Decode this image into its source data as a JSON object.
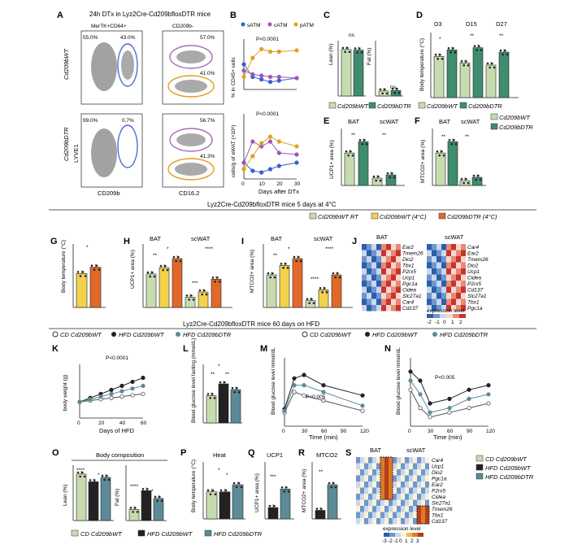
{
  "figure": {
    "panel_letters": [
      "A",
      "B",
      "C",
      "D",
      "E",
      "F",
      "G",
      "H",
      "I",
      "J",
      "K",
      "L",
      "M",
      "N",
      "O",
      "P",
      "Q",
      "R",
      "S"
    ],
    "section1_title": "24h DTx in Lyz2Cre-Cd209bfloxDTR mice",
    "section2_title": "Lyz2Cre-Cd209bfloxDTR mice 5 days at 4°C",
    "section3_title": "Lyz2Cre-Cd209bfloxDTR mice 60 days on HFD",
    "legend_top": [
      "Cd209bWT",
      "Cd209bDTR"
    ],
    "legend_cold": [
      "Cd209bWT RT",
      "Cd209bWT (4°C)",
      "Cd209bDTR (4°C)"
    ],
    "legend_hfd": [
      "CD Cd209bWT",
      "HFD Cd209bWT",
      "HFD Cd209bDTR"
    ],
    "colors": {
      "wt": "#c7dcae",
      "dtr": "#3f8c6e",
      "wt_rt": "#c7dcae",
      "wt_cold": "#f2d14d",
      "dtr_cold": "#e0692a",
      "cd": "#c7dcae",
      "hfd_wt": "#222222",
      "hfd_dtr": "#5c8a97",
      "satm": "#3a5fcd",
      "catm": "#9b5ab4",
      "patm": "#e0a020"
    }
  },
  "panelA": {
    "gate_left_title": "MerTK+CD64+",
    "gate_right_title": "CD209b-",
    "row_labels": [
      "Cd209bWT",
      "Cd209bDTR"
    ],
    "xlabels": [
      "CD209b",
      "CD16.2"
    ],
    "ylabel": "LYVE1",
    "percents_wt_left": [
      "55.0%",
      "43.0%"
    ],
    "percents_wt_right": [
      "57.0%",
      "41.0%"
    ],
    "percents_dtr_left": [
      "99.0%",
      "0.7%"
    ],
    "percents_dtr_right": [
      "56.7%",
      "41.3%"
    ]
  },
  "panelB": {
    "legend": [
      "sATM",
      "cATM",
      "pATM"
    ],
    "p1": "P<0.0001",
    "p2": "P<0.0001",
    "ylabel1": "% in CD45+ cells",
    "ylabel2": "cells/g of eWAT (×10⁶)",
    "xlabel": "Days after DTx",
    "xticks": [
      "0",
      "10",
      "20",
      "30"
    ]
  },
  "panelC": {
    "ylabels": [
      "Lean (%)",
      "Fat (%)"
    ],
    "ns": [
      "ns",
      "ns"
    ]
  },
  "panelD": {
    "titles": [
      "D3",
      "D15",
      "D27"
    ],
    "ylabel": "Body temperature (°C)",
    "sig": [
      "*",
      "**",
      "**"
    ]
  },
  "panelE": {
    "titles": [
      "BAT",
      "scWAT"
    ],
    "ylabel": "UCP1+ area (%)",
    "sig": [
      "**",
      "**"
    ]
  },
  "panelF": {
    "titles": [
      "BAT",
      "scWAT"
    ],
    "ylabel": "MTCO2+ area (%)",
    "sig": [
      "**",
      "**"
    ]
  },
  "panelG": {
    "ylabel": "Body temperature (°C)",
    "sig": "*"
  },
  "panelH": {
    "titles": [
      "BAT",
      "scWAT"
    ],
    "ylabel": "UCP1+ area (%)",
    "sig": [
      "**",
      "*",
      "***",
      "****"
    ]
  },
  "panelI": {
    "titles": [
      "BAT",
      "scWAT"
    ],
    "ylabel": "MTCO2+ area (%)",
    "sig": [
      "**",
      "*",
      "****",
      "****"
    ]
  },
  "panelJ": {
    "titles": [
      "BAT",
      "scWAT"
    ],
    "genes_bat": [
      "Ear2",
      "Tmem26",
      "Dio2",
      "Tbx1",
      "P2rx5",
      "Ucp1",
      "Pgc1a",
      "Cidea",
      "Slc27a1",
      "Car4",
      "Cd137"
    ],
    "genes_scwat": [
      "Car4",
      "Ear2",
      "Tmem26",
      "Dio2",
      "Ucp1",
      "Cidea",
      "P2rx5",
      "Cd137",
      "Slc27a1",
      "Tbx1",
      "Pgc1a"
    ],
    "scale_label": "expression level",
    "scale_ticks": [
      "-2",
      "-1",
      "0",
      "1",
      "2"
    ]
  },
  "panelK": {
    "p": "P<0.0001",
    "ylabel": "body weight (g)",
    "xlabel": "Days of HFD",
    "xticks": [
      "0",
      "20",
      "40",
      "60"
    ]
  },
  "panelL": {
    "ylabel": "Blood glucose level fasting (mmol/L)",
    "sig": [
      "*",
      "**",
      "**"
    ]
  },
  "panelM": {
    "p": "P<0.005",
    "ylabel": "Blood glucose level mmol/dL",
    "xlabel": "Time (min)",
    "xticks": [
      "0",
      "30",
      "60",
      "90",
      "120"
    ]
  },
  "panelN": {
    "p": "P<0.005",
    "ylabel": "Blood glucose level mmol/dL",
    "xlabel": "Time (min)",
    "xticks": [
      "0",
      "30",
      "60",
      "90",
      "120"
    ]
  },
  "panelO": {
    "title": "Body composition",
    "ylabels": [
      "Lean (%)",
      "Fat (%)"
    ],
    "sig": [
      "****",
      "*",
      "****",
      "*"
    ]
  },
  "panelP": {
    "title": "Heat",
    "ylabel": "Body temperature (°C)",
    "sig": [
      "*",
      "*"
    ]
  },
  "panelQ": {
    "title": "UCP1",
    "ylabel": "UCP1+ area (%)",
    "sig": "***"
  },
  "panelR": {
    "title": "MTCO2",
    "ylabel": "MTCO2+ area (%)",
    "sig": "**"
  },
  "panelS": {
    "titles": [
      "BAT",
      "scWAT"
    ],
    "genes": [
      "Car4",
      "Ucp1",
      "Dio2",
      "Pgc1a",
      "Ear2",
      "P2rx5",
      "Cidea",
      "Slc27a1",
      "Tmem26",
      "Tbx1",
      "Cd137"
    ],
    "scale_label": "expression level",
    "scale_ticks": [
      "-3",
      "-2",
      "-1",
      "0",
      "1",
      "2",
      "3"
    ]
  },
  "chart_data": [
    {
      "type": "bar",
      "panel": "C-lean",
      "categories": [
        "Cd209bWT",
        "Cd209bDTR"
      ],
      "values": [
        84,
        83
      ],
      "ylim": [
        0,
        100
      ]
    },
    {
      "type": "bar",
      "panel": "C-fat",
      "categories": [
        "Cd209bWT",
        "Cd209bDTR"
      ],
      "values": [
        9,
        10
      ],
      "ylim": [
        0,
        100
      ]
    },
    {
      "type": "bar",
      "panel": "D",
      "categories": [
        "D3-WT",
        "D3-DTR",
        "D15-WT",
        "D15-DTR",
        "D27-WT",
        "D27-DTR"
      ],
      "values": [
        36.9,
        37.2,
        36.6,
        37.3,
        36.5,
        37.1
      ],
      "ylim": [
        35,
        38
      ]
    },
    {
      "type": "bar",
      "panel": "E",
      "categories": [
        "BAT-WT",
        "BAT-DTR",
        "scWAT-WT",
        "scWAT-DTR"
      ],
      "values": [
        20,
        27,
        4.5,
        6.5
      ]
    },
    {
      "type": "bar",
      "panel": "F",
      "categories": [
        "BAT-WT",
        "BAT-DTR",
        "scWAT-WT",
        "scWAT-DTR"
      ],
      "values": [
        20,
        27,
        3,
        5
      ]
    },
    {
      "type": "bar",
      "panel": "G",
      "categories": [
        "Cd209bWT (4°C)",
        "Cd209bDTR (4°C)"
      ],
      "values": [
        36.6,
        36.9
      ],
      "ylim": [
        35,
        38
      ]
    },
    {
      "type": "bar",
      "panel": "H",
      "categories": [
        "BAT-RT",
        "BAT-WT4",
        "BAT-DTR4",
        "scWAT-RT",
        "scWAT-WT4",
        "scWAT-DTR4"
      ],
      "values": [
        26,
        31,
        38,
        8,
        12,
        22
      ]
    },
    {
      "type": "bar",
      "panel": "I",
      "categories": [
        "BAT-RT",
        "BAT-WT4",
        "BAT-DTR4",
        "scWAT-RT",
        "scWAT-WT4",
        "scWAT-DTR4"
      ],
      "values": [
        24,
        31,
        36,
        5,
        13,
        24
      ]
    },
    {
      "type": "line",
      "panel": "B-top",
      "x": [
        0,
        5,
        10,
        15,
        20,
        30
      ],
      "series": [
        {
          "name": "sATM",
          "values": [
            20,
            10,
            8,
            6,
            7,
            9
          ]
        },
        {
          "name": "cATM",
          "values": [
            15,
            12,
            11,
            10,
            10,
            9
          ]
        },
        {
          "name": "pATM",
          "values": [
            10,
            25,
            32,
            30,
            30,
            31
          ]
        }
      ],
      "ylim": [
        0,
        40
      ]
    },
    {
      "type": "line",
      "panel": "B-bottom",
      "x": [
        0,
        5,
        10,
        15,
        20,
        30
      ],
      "series": [
        {
          "name": "sATM",
          "values": [
            1.0,
            0.5,
            0.4,
            0.6,
            0.8,
            1.0
          ]
        },
        {
          "name": "cATM",
          "values": [
            1.0,
            2.3,
            2.0,
            2.3,
            1.6,
            1.5
          ]
        },
        {
          "name": "pATM",
          "values": [
            0.6,
            1.4,
            2.2,
            2.6,
            2.3,
            2.0
          ]
        }
      ],
      "ylim": [
        0,
        4
      ]
    },
    {
      "type": "line",
      "panel": "K",
      "x": [
        0,
        10,
        20,
        30,
        40,
        50,
        60
      ],
      "series": [
        {
          "name": "CD Cd209bWT",
          "values": [
            22,
            23,
            24,
            25,
            26,
            27,
            28
          ]
        },
        {
          "name": "HFD Cd209bWT",
          "values": [
            22,
            25,
            28,
            31,
            34,
            37,
            40
          ]
        },
        {
          "name": "HFD Cd209bDTR",
          "values": [
            22,
            24,
            26,
            28,
            30,
            32,
            34
          ]
        }
      ],
      "ylim": [
        10,
        50
      ]
    },
    {
      "type": "bar",
      "panel": "L",
      "categories": [
        "CD Cd209bWT",
        "HFD Cd209bWT",
        "HFD Cd209bDTR"
      ],
      "values": [
        7,
        10,
        8.5
      ],
      "ylim": [
        0,
        15
      ]
    },
    {
      "type": "line",
      "panel": "M",
      "x": [
        0,
        15,
        30,
        60,
        120
      ],
      "series": [
        {
          "name": "CD Cd209bWT",
          "values": [
            8,
            20,
            18,
            15,
            9
          ]
        },
        {
          "name": "HFD Cd209bWT",
          "values": [
            10,
            28,
            30,
            24,
            18
          ]
        },
        {
          "name": "HFD Cd209bDTR",
          "values": [
            9,
            24,
            24,
            20,
            12
          ]
        }
      ],
      "ylim": [
        0,
        40
      ]
    },
    {
      "type": "line",
      "panel": "N",
      "x": [
        0,
        15,
        30,
        60,
        90,
        120
      ],
      "series": [
        {
          "name": "CD Cd209bWT",
          "values": [
            8,
            4,
            2,
            3,
            4,
            5
          ]
        },
        {
          "name": "HFD Cd209bWT",
          "values": [
            12,
            10,
            5,
            6,
            8,
            9
          ]
        },
        {
          "name": "HFD Cd209bDTR",
          "values": [
            10,
            7,
            3,
            4,
            6,
            7
          ]
        }
      ],
      "ylim": [
        0,
        15
      ]
    },
    {
      "type": "bar",
      "panel": "O-lean",
      "categories": [
        "CD Cd209bWT",
        "HFD Cd209bWT",
        "HFD Cd209bDTR"
      ],
      "values": [
        84,
        70,
        78
      ],
      "ylim": [
        0,
        100
      ]
    },
    {
      "type": "bar",
      "panel": "O-fat",
      "categories": [
        "CD Cd209bWT",
        "HFD Cd209bWT",
        "HFD Cd209bDTR"
      ],
      "values": [
        10,
        27,
        20
      ],
      "ylim": [
        0,
        50
      ]
    },
    {
      "type": "bar",
      "panel": "P",
      "categories": [
        "CD Cd209bWT",
        "HFD Cd209bWT",
        "HFD Cd209bDTR"
      ],
      "values": [
        35.9,
        35.9,
        36.4
      ],
      "ylim": [
        34,
        38
      ]
    },
    {
      "type": "bar",
      "panel": "Q",
      "categories": [
        "HFD Cd209bWT",
        "HFD Cd209bDTR"
      ],
      "values": [
        1.6,
        4.2
      ],
      "ylim": [
        0,
        8
      ]
    },
    {
      "type": "bar",
      "panel": "R",
      "categories": [
        "HFD Cd209bWT",
        "HFD Cd209bDTR"
      ],
      "values": [
        1.2,
        4.8
      ],
      "ylim": [
        0,
        8
      ]
    }
  ]
}
